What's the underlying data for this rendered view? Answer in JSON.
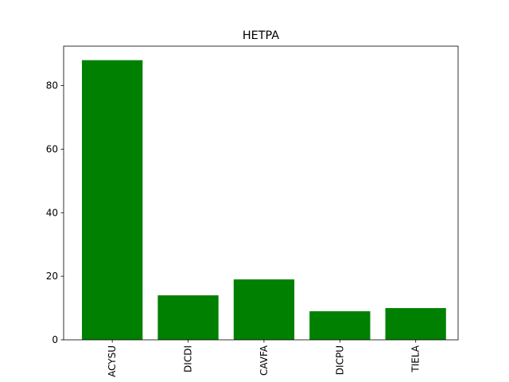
{
  "chart_data": {
    "type": "bar",
    "title": "HETPA",
    "xlabel": "",
    "ylabel": "",
    "categories": [
      "ACYSU",
      "DICDI",
      "CAVFA",
      "DICPU",
      "TIELA"
    ],
    "values": [
      88,
      14,
      19,
      9,
      10
    ],
    "ylim": [
      0,
      92.4
    ],
    "yticks": [
      0,
      20,
      40,
      60,
      80
    ],
    "bar_color": "#008000",
    "xtick_rotation": "vertical",
    "grid": false,
    "legend": "none"
  }
}
